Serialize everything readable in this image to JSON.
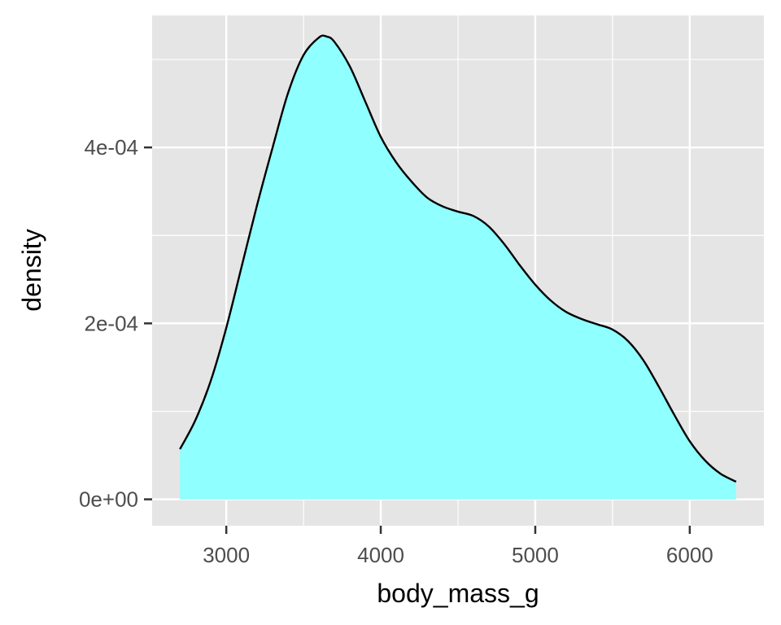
{
  "chart_data": {
    "type": "area",
    "subtype": "density",
    "title": "",
    "xlabel": "body_mass_g",
    "ylabel": "density",
    "xlim": [
      2520,
      6480
    ],
    "ylim": [
      -3e-05,
      0.00055
    ],
    "x_ticks": [
      3000,
      4000,
      5000,
      6000
    ],
    "x_tick_labels": [
      "3000",
      "4000",
      "5000",
      "6000"
    ],
    "x_minor_ticks": [
      3500,
      4500,
      5500
    ],
    "y_ticks": [
      0,
      0.0002,
      0.0004
    ],
    "y_tick_labels": [
      "0e+00",
      "2e-04",
      "4e-04"
    ],
    "y_minor_ticks": [
      0.0001,
      0.0003,
      0.0005
    ],
    "grid": true,
    "panel_background": "#e5e5e5",
    "fill_color": "#8fffff",
    "line_color": "#000000",
    "series": [
      {
        "x": [
          2700,
          2800,
          2900,
          3000,
          3100,
          3200,
          3300,
          3400,
          3500,
          3600,
          3650,
          3700,
          3800,
          3900,
          4000,
          4100,
          4200,
          4300,
          4400,
          4500,
          4600,
          4700,
          4800,
          4900,
          5000,
          5100,
          5200,
          5300,
          5400,
          5500,
          5600,
          5700,
          5800,
          5900,
          6000,
          6100,
          6200,
          6300
        ],
        "y": [
          5.7e-05,
          9e-05,
          0.000135,
          0.000195,
          0.000265,
          0.000335,
          0.0004,
          0.000462,
          0.000505,
          0.000525,
          0.000526,
          0.00052,
          0.000492,
          0.000452,
          0.000412,
          0.000383,
          0.000361,
          0.000343,
          0.000333,
          0.000327,
          0.000322,
          0.00031,
          0.00029,
          0.000266,
          0.000244,
          0.000226,
          0.000213,
          0.000205,
          0.000199,
          0.000193,
          0.00018,
          0.000158,
          0.000128,
          9.6e-05,
          6.6e-05,
          4.4e-05,
          2.9e-05,
          2e-05
        ]
      }
    ]
  }
}
